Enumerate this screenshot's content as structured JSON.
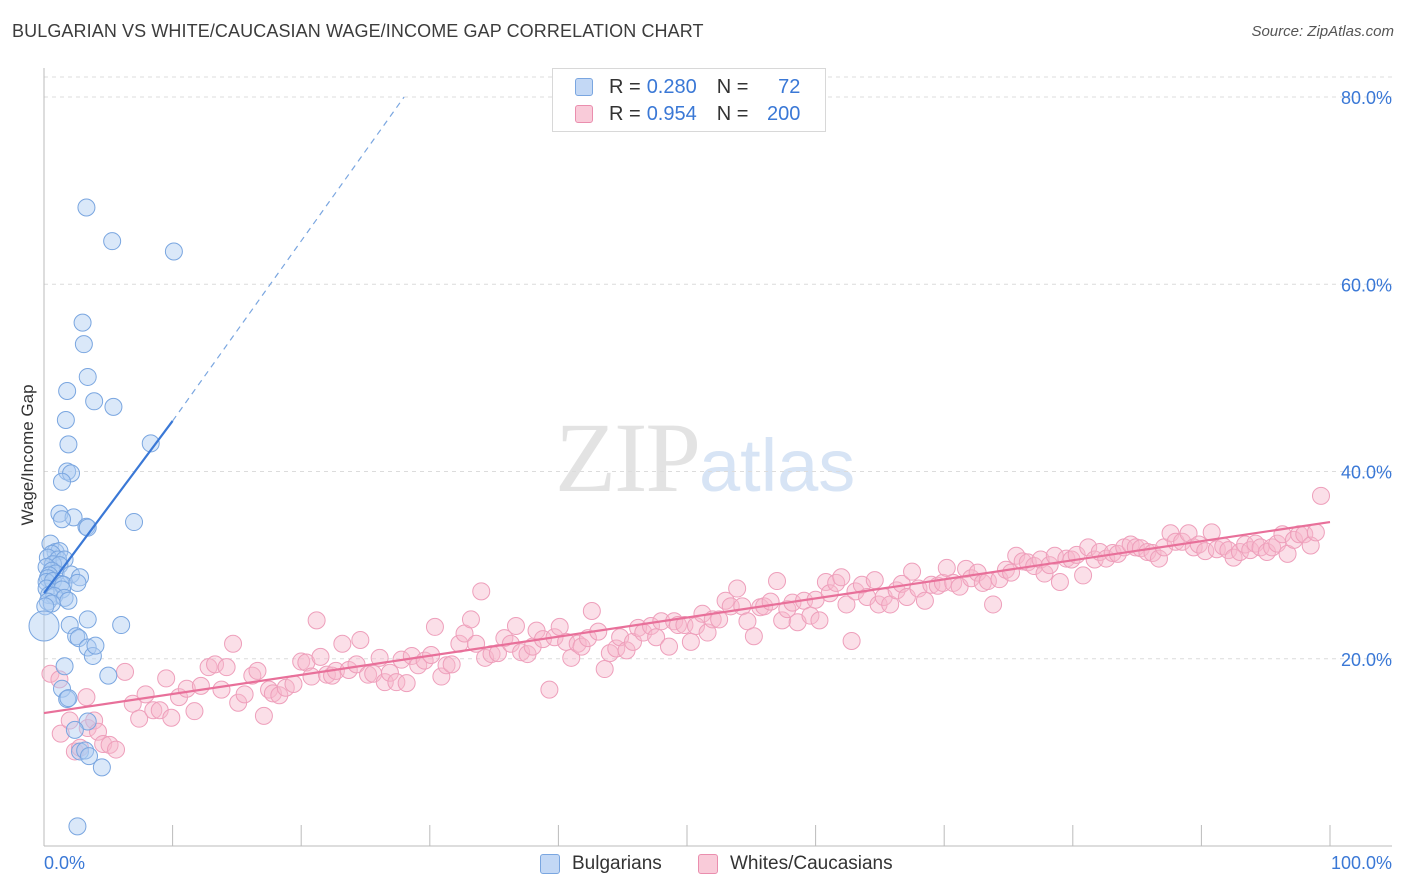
{
  "title": "BULGARIAN VS WHITE/CAUCASIAN WAGE/INCOME GAP CORRELATION CHART",
  "source": "Source: ZipAtlas.com",
  "watermark": {
    "zip": "ZIP",
    "atlas": "atlas"
  },
  "legend": {
    "rows": [
      {
        "r_label": "R =",
        "r_value": "0.280",
        "n_label": "N =",
        "n_value": "72",
        "color": "#aecbf2"
      },
      {
        "r_label": "R =",
        "r_value": "0.954",
        "n_label": "N =",
        "n_value": "200",
        "color": "#f6b8cc"
      }
    ]
  },
  "bottom_legend": {
    "series1": "Bulgarians",
    "series2": "Whites/Caucasians"
  },
  "chart_data": {
    "type": "scatter",
    "title": "BULGARIAN VS WHITE/CAUCASIAN WAGE/INCOME GAP CORRELATION CHART",
    "xlabel": "",
    "ylabel": "Wage/Income Gap",
    "xlim": [
      0,
      100
    ],
    "ylim": [
      0,
      85
    ],
    "x_tick_labels": [
      "0.0%",
      "100.0%"
    ],
    "y_ticks": [
      20,
      40,
      60,
      80
    ],
    "y_tick_labels": [
      "20.0%",
      "40.0%",
      "60.0%",
      "80.0%"
    ],
    "grid": true,
    "legend_position": "top-center",
    "colors": {
      "blue": "#3a78d6",
      "blue_fill": "#aecbf2",
      "pink": "#e8709a",
      "pink_fill": "#f6b8cc"
    },
    "series": [
      {
        "name": "Bulgarians",
        "color": "#3a78d6",
        "trend": {
          "x": [
            0,
            10
          ],
          "y": [
            27,
            45.4
          ],
          "dashed_to": [
            28,
            80
          ]
        },
        "points": [
          [
            3.3,
            68.2
          ],
          [
            5.3,
            64.6
          ],
          [
            10.1,
            63.5
          ],
          [
            3,
            55.9
          ],
          [
            3.1,
            53.6
          ],
          [
            3.4,
            50.1
          ],
          [
            1.8,
            48.6
          ],
          [
            3.9,
            47.5
          ],
          [
            5.4,
            46.9
          ],
          [
            1.7,
            45.5
          ],
          [
            1.9,
            42.9
          ],
          [
            8.3,
            43
          ],
          [
            1.8,
            40
          ],
          [
            2.1,
            39.8
          ],
          [
            1.4,
            38.9
          ],
          [
            1.2,
            35.5
          ],
          [
            2.3,
            35.1
          ],
          [
            1.4,
            34.9
          ],
          [
            3.3,
            34.1
          ],
          [
            3.4,
            34
          ],
          [
            7,
            34.6
          ],
          [
            0.5,
            32.3
          ],
          [
            0.9,
            31.4
          ],
          [
            1.2,
            31.5
          ],
          [
            0.6,
            31.2
          ],
          [
            0.3,
            30.8
          ],
          [
            1.1,
            30.6
          ],
          [
            1.6,
            30.6
          ],
          [
            0.7,
            30.1
          ],
          [
            1.2,
            30
          ],
          [
            0.2,
            29.8
          ],
          [
            0.6,
            29.4
          ],
          [
            0.9,
            29.1
          ],
          [
            0.4,
            28.9
          ],
          [
            2.1,
            29
          ],
          [
            0.3,
            28.6
          ],
          [
            2.8,
            28.7
          ],
          [
            0.2,
            28.2
          ],
          [
            0.7,
            28.3
          ],
          [
            1.3,
            28
          ],
          [
            1.5,
            27.9
          ],
          [
            2.6,
            28.1
          ],
          [
            0.2,
            27.5
          ],
          [
            1.4,
            27.4
          ],
          [
            0.4,
            26.8
          ],
          [
            0.8,
            26.7
          ],
          [
            1.6,
            26.5
          ],
          [
            0.3,
            26.1
          ],
          [
            1.9,
            26.2
          ],
          [
            0.6,
            25.9
          ],
          [
            0.1,
            25.6
          ],
          [
            0,
            23.5
          ],
          [
            3.4,
            24.2
          ],
          [
            2,
            23.6
          ],
          [
            6,
            23.6
          ],
          [
            2.5,
            22.4
          ],
          [
            2.7,
            22.2
          ],
          [
            3.4,
            21.2
          ],
          [
            3.8,
            20.3
          ],
          [
            4,
            21.4
          ],
          [
            1.6,
            19.2
          ],
          [
            5,
            18.2
          ],
          [
            1.4,
            16.8
          ],
          [
            1.8,
            15.7
          ],
          [
            3.4,
            13.3
          ],
          [
            2.4,
            12.4
          ],
          [
            2.8,
            10.1
          ],
          [
            3.2,
            10.2
          ],
          [
            3.5,
            9.6
          ],
          [
            4.5,
            8.4
          ],
          [
            2.6,
            2.1
          ],
          [
            1.9,
            15.8
          ]
        ]
      },
      {
        "name": "Whites/Caucasians",
        "color": "#e8709a",
        "trend": {
          "x": [
            0,
            100
          ],
          "y": [
            14.2,
            34.6
          ]
        },
        "points": [
          [
            0.5,
            18.4
          ],
          [
            1.2,
            17.8
          ],
          [
            1.3,
            12
          ],
          [
            2,
            13.4
          ],
          [
            2.4,
            10.1
          ],
          [
            2.8,
            10.5
          ],
          [
            3.3,
            15.9
          ],
          [
            3.4,
            12.6
          ],
          [
            3.9,
            13.4
          ],
          [
            4.2,
            12.2
          ],
          [
            4.6,
            10.9
          ],
          [
            5.1,
            10.8
          ],
          [
            5.6,
            10.3
          ],
          [
            6.3,
            18.6
          ],
          [
            6.9,
            15.2
          ],
          [
            7.4,
            13.6
          ],
          [
            7.9,
            16.2
          ],
          [
            8.5,
            14.5
          ],
          [
            9,
            14.5
          ],
          [
            9.5,
            17.9
          ],
          [
            9.9,
            13.7
          ],
          [
            10.5,
            15.9
          ],
          [
            11.1,
            16.8
          ],
          [
            11.7,
            14.4
          ],
          [
            12.2,
            17.1
          ],
          [
            12.8,
            19.1
          ],
          [
            13.3,
            19.4
          ],
          [
            13.8,
            16.7
          ],
          [
            14.2,
            19.1
          ],
          [
            14.7,
            21.6
          ],
          [
            15.1,
            15.3
          ],
          [
            15.6,
            16.2
          ],
          [
            16.2,
            18.2
          ],
          [
            16.6,
            18.7
          ],
          [
            17.1,
            13.9
          ],
          [
            17.5,
            16.7
          ],
          [
            17.8,
            16.3
          ],
          [
            18.3,
            16.1
          ],
          [
            18.8,
            16.9
          ],
          [
            19.4,
            17.3
          ],
          [
            20,
            19.7
          ],
          [
            20.4,
            19.6
          ],
          [
            20.8,
            18.1
          ],
          [
            21.2,
            24.1
          ],
          [
            21.5,
            20.2
          ],
          [
            22,
            18.3
          ],
          [
            22.4,
            18.2
          ],
          [
            22.7,
            18.7
          ],
          [
            23.2,
            21.6
          ],
          [
            23.7,
            18.8
          ],
          [
            24.3,
            19.4
          ],
          [
            24.6,
            22
          ],
          [
            25.2,
            18.3
          ],
          [
            25.6,
            18.4
          ],
          [
            26.1,
            20.1
          ],
          [
            26.5,
            17.5
          ],
          [
            26.9,
            18.5
          ],
          [
            27.4,
            17.5
          ],
          [
            27.8,
            19.9
          ],
          [
            28.2,
            17.4
          ],
          [
            28.6,
            20.3
          ],
          [
            29.1,
            19.3
          ],
          [
            29.6,
            19.8
          ],
          [
            30.1,
            20.4
          ],
          [
            30.4,
            23.4
          ],
          [
            30.9,
            18.1
          ],
          [
            31.3,
            19.3
          ],
          [
            31.7,
            19.4
          ],
          [
            32.3,
            21.6
          ],
          [
            32.7,
            22.7
          ],
          [
            33.2,
            24.2
          ],
          [
            33.6,
            21.6
          ],
          [
            34,
            27.2
          ],
          [
            34.3,
            20.1
          ],
          [
            34.8,
            20.5
          ],
          [
            35.3,
            20.6
          ],
          [
            35.8,
            22.2
          ],
          [
            36.3,
            21.6
          ],
          [
            36.7,
            23.5
          ],
          [
            37.1,
            20.7
          ],
          [
            37.6,
            20.5
          ],
          [
            38,
            21.3
          ],
          [
            38.3,
            23
          ],
          [
            38.8,
            22.1
          ],
          [
            39.3,
            16.7
          ],
          [
            39.7,
            22.3
          ],
          [
            40.1,
            23.4
          ],
          [
            40.6,
            21.8
          ],
          [
            41,
            20.1
          ],
          [
            41.5,
            21.6
          ],
          [
            41.8,
            21.3
          ],
          [
            42.3,
            22.2
          ],
          [
            42.6,
            25.1
          ],
          [
            43.1,
            22.9
          ],
          [
            43.6,
            18.9
          ],
          [
            44,
            20.6
          ],
          [
            44.5,
            21.1
          ],
          [
            44.8,
            22.3
          ],
          [
            45.3,
            20.9
          ],
          [
            45.8,
            21.8
          ],
          [
            46.2,
            23.3
          ],
          [
            46.6,
            22.8
          ],
          [
            47.2,
            23.5
          ],
          [
            47.6,
            22.3
          ],
          [
            48,
            24
          ],
          [
            48.6,
            21.3
          ],
          [
            49,
            24
          ],
          [
            49.3,
            23.6
          ],
          [
            49.8,
            23.6
          ],
          [
            50.3,
            21.8
          ],
          [
            50.7,
            23.5
          ],
          [
            51.2,
            24.8
          ],
          [
            51.6,
            22.8
          ],
          [
            52,
            24.2
          ],
          [
            52.5,
            24.2
          ],
          [
            53,
            26.2
          ],
          [
            53.4,
            25.6
          ],
          [
            53.9,
            27.5
          ],
          [
            54.3,
            25.6
          ],
          [
            54.7,
            24
          ],
          [
            55.2,
            22.4
          ],
          [
            55.7,
            25.5
          ],
          [
            56,
            25.6
          ],
          [
            56.5,
            26.1
          ],
          [
            57,
            28.3
          ],
          [
            57.4,
            24.1
          ],
          [
            57.8,
            25.3
          ],
          [
            58.2,
            26
          ],
          [
            58.6,
            23.9
          ],
          [
            59.1,
            26.2
          ],
          [
            59.6,
            24.6
          ],
          [
            60,
            26.3
          ],
          [
            60.3,
            24.1
          ],
          [
            60.8,
            28.2
          ],
          [
            61.1,
            27
          ],
          [
            61.6,
            28.1
          ],
          [
            62,
            28.7
          ],
          [
            62.4,
            25.8
          ],
          [
            62.8,
            21.9
          ],
          [
            63.1,
            27.2
          ],
          [
            63.6,
            27.9
          ],
          [
            64,
            26.6
          ],
          [
            64.6,
            28.4
          ],
          [
            64.9,
            25.8
          ],
          [
            65.3,
            26.6
          ],
          [
            65.8,
            25.8
          ],
          [
            66.3,
            27.3
          ],
          [
            66.7,
            28
          ],
          [
            67.1,
            26.6
          ],
          [
            67.5,
            29.3
          ],
          [
            68,
            27.5
          ],
          [
            68.5,
            26.2
          ],
          [
            69,
            27.9
          ],
          [
            69.5,
            27.8
          ],
          [
            69.9,
            28.1
          ],
          [
            70.2,
            29.7
          ],
          [
            70.7,
            28.1
          ],
          [
            71.2,
            27.7
          ],
          [
            71.7,
            29.6
          ],
          [
            72.1,
            28.6
          ],
          [
            72.6,
            29.2
          ],
          [
            73,
            28.1
          ],
          [
            73.4,
            28.3
          ],
          [
            73.8,
            25.8
          ],
          [
            74.3,
            28.5
          ],
          [
            74.8,
            29.5
          ],
          [
            75.2,
            29.2
          ],
          [
            75.6,
            31
          ],
          [
            76.1,
            30.4
          ],
          [
            76.5,
            30.3
          ],
          [
            77,
            29.9
          ],
          [
            77.5,
            30.6
          ],
          [
            77.8,
            29.1
          ],
          [
            78.2,
            30
          ],
          [
            78.6,
            31
          ],
          [
            79,
            28.2
          ],
          [
            79.5,
            30.7
          ],
          [
            79.9,
            30.6
          ],
          [
            80.3,
            31.1
          ],
          [
            80.8,
            28.9
          ],
          [
            81.2,
            31.9
          ],
          [
            81.7,
            30.6
          ],
          [
            82.1,
            31.4
          ],
          [
            82.6,
            30.7
          ],
          [
            83.1,
            31.3
          ],
          [
            83.5,
            31.2
          ],
          [
            84,
            31.9
          ],
          [
            84.5,
            32.2
          ],
          [
            84.9,
            31.9
          ],
          [
            85.3,
            31.8
          ],
          [
            85.8,
            31.4
          ],
          [
            86.2,
            31.3
          ],
          [
            86.7,
            30.7
          ],
          [
            87.1,
            31.9
          ],
          [
            87.6,
            33.4
          ],
          [
            88,
            32.5
          ],
          [
            88.5,
            32.5
          ],
          [
            89,
            33.4
          ],
          [
            89.4,
            31.9
          ],
          [
            89.8,
            32.2
          ],
          [
            90.3,
            31.5
          ],
          [
            90.8,
            33.5
          ],
          [
            91.2,
            31.7
          ],
          [
            91.7,
            32
          ],
          [
            92.1,
            31.6
          ],
          [
            92.5,
            30.8
          ],
          [
            93,
            31.4
          ],
          [
            93.4,
            32.2
          ],
          [
            93.8,
            31.6
          ],
          [
            94.2,
            32.3
          ],
          [
            94.6,
            31.9
          ],
          [
            95.1,
            31.4
          ],
          [
            95.5,
            31.9
          ],
          [
            95.9,
            32.3
          ],
          [
            96.3,
            33.3
          ],
          [
            96.7,
            31.2
          ],
          [
            97.2,
            32.7
          ],
          [
            97.6,
            33.3
          ],
          [
            98,
            33.3
          ],
          [
            98.5,
            32.1
          ],
          [
            98.9,
            33.5
          ],
          [
            99.3,
            37.4
          ]
        ]
      }
    ]
  }
}
